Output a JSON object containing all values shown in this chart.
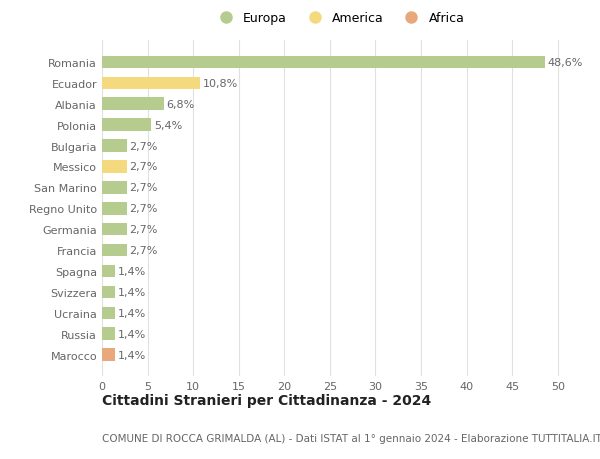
{
  "countries": [
    "Romania",
    "Ecuador",
    "Albania",
    "Polonia",
    "Bulgaria",
    "Messico",
    "San Marino",
    "Regno Unito",
    "Germania",
    "Francia",
    "Spagna",
    "Svizzera",
    "Ucraina",
    "Russia",
    "Marocco"
  ],
  "values": [
    48.6,
    10.8,
    6.8,
    5.4,
    2.7,
    2.7,
    2.7,
    2.7,
    2.7,
    2.7,
    1.4,
    1.4,
    1.4,
    1.4,
    1.4
  ],
  "labels": [
    "48,6%",
    "10,8%",
    "6,8%",
    "5,4%",
    "2,7%",
    "2,7%",
    "2,7%",
    "2,7%",
    "2,7%",
    "2,7%",
    "1,4%",
    "1,4%",
    "1,4%",
    "1,4%",
    "1,4%"
  ],
  "continents": [
    "Europa",
    "America",
    "Europa",
    "Europa",
    "Europa",
    "America",
    "Europa",
    "Europa",
    "Europa",
    "Europa",
    "Europa",
    "Europa",
    "Europa",
    "Europa",
    "Africa"
  ],
  "colors": {
    "Europa": "#b5cc8e",
    "America": "#f5d97e",
    "Africa": "#e8a87c"
  },
  "title": "Cittadini Stranieri per Cittadinanza - 2024",
  "subtitle": "COMUNE DI ROCCA GRIMALDA (AL) - Dati ISTAT al 1° gennaio 2024 - Elaborazione TUTTITALIA.IT",
  "xlim": [
    0,
    52
  ],
  "xticks": [
    0,
    5,
    10,
    15,
    20,
    25,
    30,
    35,
    40,
    45,
    50
  ],
  "background_color": "#ffffff",
  "grid_color": "#e0e0e0",
  "bar_height": 0.6,
  "title_fontsize": 10,
  "subtitle_fontsize": 7.5,
  "tick_fontsize": 8,
  "label_fontsize": 8,
  "legend_fontsize": 9
}
